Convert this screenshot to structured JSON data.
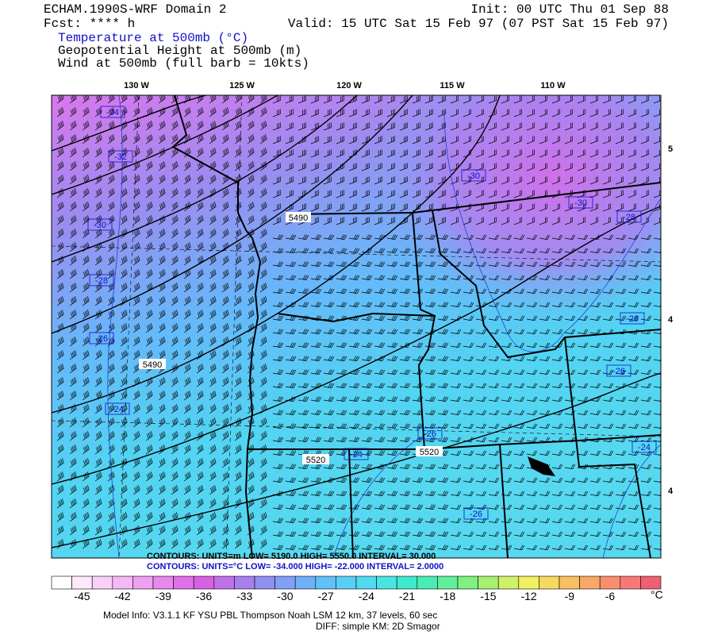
{
  "header": {
    "model": "ECHAM.1990S-WRF Domain 2",
    "forecast": "Fcst: **** h",
    "init": "Init: 00 UTC Thu 01 Sep 88",
    "valid": "Valid: 15 UTC Sat 15 Feb 97 (07 PST Sat 15 Feb 97)"
  },
  "fields": [
    "Temperature at 500mb (°C)",
    "Geopotential Height at 500mb (m)",
    "Wind at 500mb (full barb = 10kts)"
  ],
  "longitude_labels": [
    "130 W",
    "125 W",
    "120 W",
    "115 W",
    "110 W"
  ],
  "latitude_labels": [
    "5",
    "4",
    "4"
  ],
  "height_labels": [
    "5490",
    "5490",
    "5520",
    "5520"
  ],
  "temperature_labels": [
    "-34",
    "-32",
    "-30",
    "-28",
    "-26",
    "-24",
    "-30",
    "-30",
    "-28",
    "-26",
    "-26",
    "-26",
    "-24",
    "-24",
    "-26"
  ],
  "contour_info": {
    "height": "CONTOURS:  UNITS=m   LOW=  5190.0       HIGH=  5550.0        INTERVAL=  30.000",
    "temperature": "CONTOURS:  UNITS=°C  LOW=  -34.000      HIGH=  -22.000       INTERVAL=   2.0000"
  },
  "colorbar": {
    "colors": [
      "#ffffff",
      "#fde8fd",
      "#f8d0f8",
      "#f4b8f4",
      "#f0a0f0",
      "#e888ec",
      "#e070e8",
      "#d860e4",
      "#c070e8",
      "#a880ec",
      "#9090f0",
      "#80a0f4",
      "#70b0f8",
      "#60c0fc",
      "#58cff8",
      "#50dcf0",
      "#48e4e0",
      "#40e8cc",
      "#48ecb4",
      "#60f09c",
      "#80f080",
      "#a8f070",
      "#d0f068",
      "#f0f060",
      "#f8d860",
      "#f8c060",
      "#f8a868",
      "#f89070",
      "#f87878",
      "#f06070"
    ],
    "labels": [
      "-45",
      "-42",
      "-39",
      "-36",
      "-33",
      "-30",
      "-27",
      "-24",
      "-21",
      "-18",
      "-15",
      "-12",
      "-9",
      "-6"
    ],
    "unit": "°C"
  },
  "footer": {
    "model_info": "Model Info: V3.1.1    KF     YSU PBL   Thompson     Noah LSM   12 km,    37 levels,    60 sec",
    "diff": "DIFF: simple KM: 2D Smagor"
  }
}
